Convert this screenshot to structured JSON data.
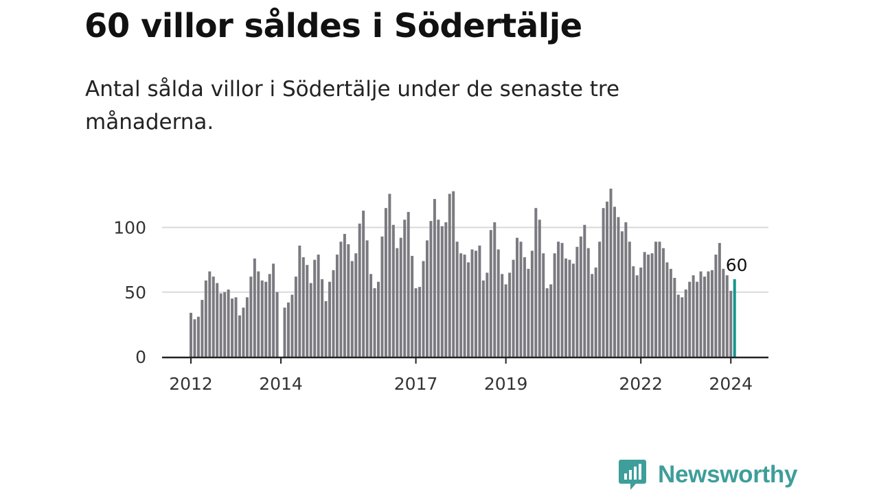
{
  "title": "60 villor såldes i Södertälje",
  "subtitle": "Antal sålda villor i Södertälje under de senaste tre månaderna.",
  "brand": {
    "name": "Newsworthy"
  },
  "colors": {
    "bar": "#7b7a80",
    "highlight": "#13968f",
    "grid": "#d9d9d9",
    "axis": "#222222",
    "brand": "#3d9e9a"
  },
  "chart_data": {
    "type": "bar",
    "x_start": "2012-01",
    "y_ticks": [
      0,
      50,
      100
    ],
    "ylim": [
      0,
      135
    ],
    "x_ticks": [
      {
        "label": "2012",
        "index": 0
      },
      {
        "label": "2014",
        "index": 24
      },
      {
        "label": "2017",
        "index": 60
      },
      {
        "label": "2019",
        "index": 84
      },
      {
        "label": "2022",
        "index": 120
      },
      {
        "label": "2024",
        "index": 144
      }
    ],
    "highlight": {
      "value": 60,
      "label": "60"
    },
    "values": [
      34,
      29,
      31,
      44,
      59,
      66,
      62,
      57,
      49,
      50,
      52,
      45,
      46,
      32,
      38,
      46,
      62,
      76,
      66,
      59,
      58,
      64,
      72,
      50,
      null,
      38,
      42,
      48,
      62,
      86,
      77,
      71,
      57,
      75,
      79,
      60,
      43,
      58,
      67,
      79,
      89,
      95,
      87,
      74,
      80,
      103,
      113,
      90,
      64,
      53,
      58,
      93,
      115,
      126,
      102,
      84,
      92,
      106,
      112,
      78,
      53,
      54,
      74,
      90,
      105,
      122,
      106,
      101,
      104,
      126,
      128,
      89,
      80,
      79,
      73,
      83,
      82,
      86,
      59,
      65,
      98,
      104,
      83,
      64,
      56,
      65,
      75,
      92,
      89,
      77,
      68,
      82,
      115,
      106,
      80,
      53,
      56,
      80,
      89,
      88,
      76,
      75,
      72,
      85,
      93,
      102,
      84,
      64,
      69,
      89,
      115,
      120,
      130,
      116,
      108,
      97,
      104,
      89,
      70,
      63,
      69,
      81,
      79,
      80,
      89,
      89,
      84,
      73,
      68,
      61,
      48,
      46,
      52,
      58,
      63,
      58,
      66,
      62,
      66,
      67,
      79,
      88,
      68,
      63,
      51,
      60
    ]
  }
}
